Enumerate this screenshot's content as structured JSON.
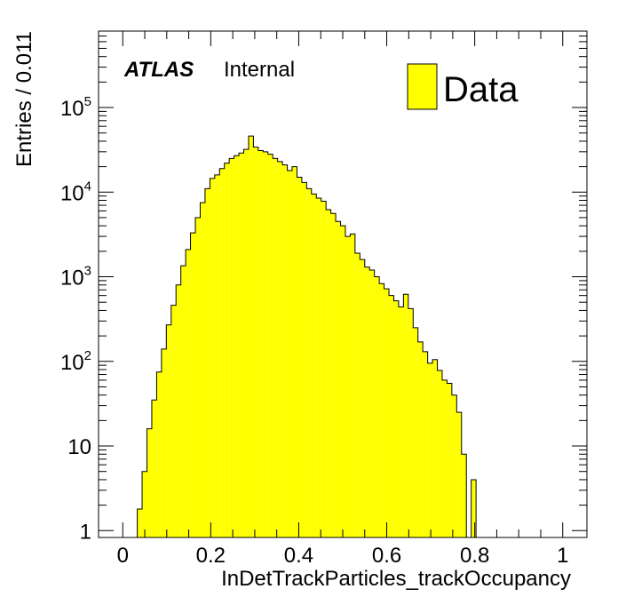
{
  "chart_data": {
    "type": "bar",
    "title": "",
    "xlabel": "InDetTrackParticles_trackOccupancy",
    "ylabel": "Entries / 0.011",
    "xlim": [
      -0.055,
      1.055
    ],
    "ylim": [
      0.83,
      800000
    ],
    "y_scale": "log",
    "x_ticks": [
      "0",
      "0.2",
      "0.4",
      "0.6",
      "0.8",
      "1"
    ],
    "x_tick_values": [
      0,
      0.2,
      0.4,
      0.6,
      0.8,
      1
    ],
    "y_ticks": [
      {
        "value": 1,
        "base": "1",
        "exp": ""
      },
      {
        "value": 10,
        "base": "10",
        "exp": ""
      },
      {
        "value": 100,
        "base": "10",
        "exp": "2"
      },
      {
        "value": 1000,
        "base": "10",
        "exp": "3"
      },
      {
        "value": 10000,
        "base": "10",
        "exp": "4"
      },
      {
        "value": 100000,
        "base": "10",
        "exp": "5"
      }
    ],
    "label_main": "ATLAS",
    "label_sub": "Internal",
    "bin_width": 0.011,
    "series": [
      {
        "name": "Data",
        "color": "#ffff00",
        "bins": [
          {
            "x": 0.033,
            "y": 1.8
          },
          {
            "x": 0.044,
            "y": 5.0
          },
          {
            "x": 0.055,
            "y": 16
          },
          {
            "x": 0.066,
            "y": 35
          },
          {
            "x": 0.077,
            "y": 75
          },
          {
            "x": 0.088,
            "y": 140
          },
          {
            "x": 0.099,
            "y": 270
          },
          {
            "x": 0.11,
            "y": 460
          },
          {
            "x": 0.121,
            "y": 800
          },
          {
            "x": 0.132,
            "y": 1350
          },
          {
            "x": 0.143,
            "y": 2100
          },
          {
            "x": 0.154,
            "y": 3300
          },
          {
            "x": 0.165,
            "y": 5000
          },
          {
            "x": 0.176,
            "y": 7500
          },
          {
            "x": 0.187,
            "y": 11000
          },
          {
            "x": 0.198,
            "y": 14500
          },
          {
            "x": 0.209,
            "y": 16000
          },
          {
            "x": 0.22,
            "y": 19000
          },
          {
            "x": 0.231,
            "y": 22000
          },
          {
            "x": 0.242,
            "y": 25000
          },
          {
            "x": 0.253,
            "y": 27000
          },
          {
            "x": 0.264,
            "y": 29000
          },
          {
            "x": 0.275,
            "y": 32000
          },
          {
            "x": 0.286,
            "y": 46000
          },
          {
            "x": 0.297,
            "y": 34000
          },
          {
            "x": 0.308,
            "y": 31000
          },
          {
            "x": 0.319,
            "y": 30000
          },
          {
            "x": 0.33,
            "y": 28000
          },
          {
            "x": 0.341,
            "y": 25000
          },
          {
            "x": 0.352,
            "y": 23000
          },
          {
            "x": 0.363,
            "y": 21000
          },
          {
            "x": 0.374,
            "y": 18000
          },
          {
            "x": 0.385,
            "y": 20000
          },
          {
            "x": 0.396,
            "y": 15000
          },
          {
            "x": 0.407,
            "y": 13000
          },
          {
            "x": 0.418,
            "y": 11000
          },
          {
            "x": 0.429,
            "y": 9500
          },
          {
            "x": 0.44,
            "y": 8500
          },
          {
            "x": 0.451,
            "y": 7800
          },
          {
            "x": 0.462,
            "y": 6200
          },
          {
            "x": 0.473,
            "y": 5600
          },
          {
            "x": 0.484,
            "y": 4500
          },
          {
            "x": 0.495,
            "y": 4000
          },
          {
            "x": 0.506,
            "y": 3000
          },
          {
            "x": 0.517,
            "y": 3200
          },
          {
            "x": 0.528,
            "y": 1900
          },
          {
            "x": 0.539,
            "y": 1600
          },
          {
            "x": 0.55,
            "y": 1300
          },
          {
            "x": 0.561,
            "y": 1200
          },
          {
            "x": 0.572,
            "y": 1000
          },
          {
            "x": 0.583,
            "y": 830
          },
          {
            "x": 0.594,
            "y": 720
          },
          {
            "x": 0.605,
            "y": 600
          },
          {
            "x": 0.616,
            "y": 520
          },
          {
            "x": 0.627,
            "y": 440
          },
          {
            "x": 0.638,
            "y": 620
          },
          {
            "x": 0.649,
            "y": 420
          },
          {
            "x": 0.66,
            "y": 250
          },
          {
            "x": 0.671,
            "y": 170
          },
          {
            "x": 0.682,
            "y": 130
          },
          {
            "x": 0.693,
            "y": 95
          },
          {
            "x": 0.704,
            "y": 105
          },
          {
            "x": 0.715,
            "y": 78
          },
          {
            "x": 0.726,
            "y": 60
          },
          {
            "x": 0.737,
            "y": 55
          },
          {
            "x": 0.748,
            "y": 40
          },
          {
            "x": 0.759,
            "y": 25
          },
          {
            "x": 0.77,
            "y": 8
          },
          {
            "x": 0.781,
            "y": 0
          },
          {
            "x": 0.792,
            "y": 4
          }
        ]
      }
    ]
  }
}
